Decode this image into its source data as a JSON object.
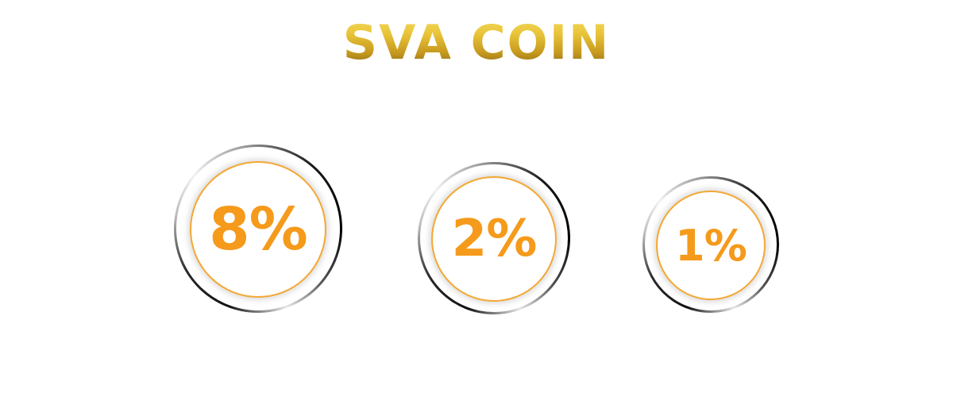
{
  "title": "SVA COIN",
  "colors": {
    "title_gradient_top": "#f6df6a",
    "title_gradient_bottom": "#6d5312",
    "badge_accent": "#f59a1b",
    "badge_border": "#f4a833"
  },
  "badges": [
    {
      "value": "8%"
    },
    {
      "value": "2%"
    },
    {
      "value": "1%"
    }
  ]
}
